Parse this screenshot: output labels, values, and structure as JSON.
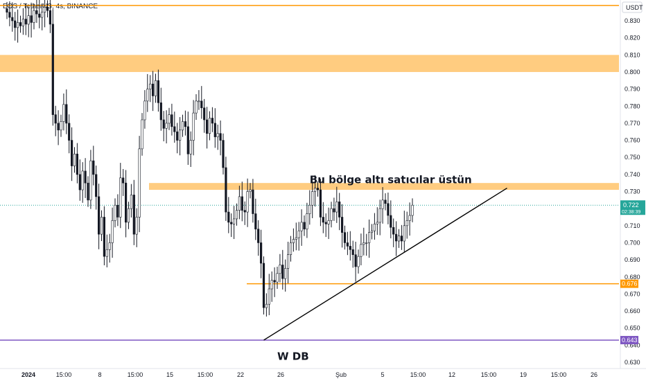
{
  "header": {
    "symbol_title": "EOS / TetherUS, 4s, BINANCE"
  },
  "price_scale": {
    "currency": "USDT"
  },
  "chart_data": {
    "type": "candlestick",
    "title": "EOS / TetherUS, 4s, BINANCE",
    "ylim": [
      0.625,
      0.84
    ],
    "y_ticks": [
      0.63,
      0.64,
      0.65,
      0.66,
      0.67,
      0.68,
      0.69,
      0.7,
      0.71,
      0.72,
      0.73,
      0.74,
      0.75,
      0.76,
      0.77,
      0.78,
      0.79,
      0.8,
      0.81,
      0.82,
      0.83
    ],
    "y_tick_labels": [
      "0.630",
      "0.640",
      "0.650",
      "0.660",
      "0.670",
      "0.680",
      "0.690",
      "0.700",
      "0.710",
      "0.720",
      "0.730",
      "0.740",
      "0.750",
      "0.760",
      "0.770",
      "0.780",
      "0.790",
      "0.800",
      "0.810",
      "0.820",
      "0.830"
    ],
    "x_tick_labels": [
      "2024",
      "15:00",
      "8",
      "15:00",
      "15",
      "15:00",
      "22",
      "26",
      "Şub",
      "5",
      "15:00",
      "12",
      "15:00",
      "19",
      "15:00",
      "26"
    ],
    "current_price": {
      "label": "0.722",
      "countdown": "02:38:39",
      "value": 0.722,
      "color": "#26a69a"
    },
    "price_tags": [
      {
        "label": "0.676",
        "value": 0.676,
        "color": "#ff9800"
      },
      {
        "label": "0.643",
        "value": 0.643,
        "color": "#7e57c2"
      }
    ],
    "levels": [
      {
        "value": 0.839,
        "color": "#ff9800"
      },
      {
        "value": 0.676,
        "color": "#ff9800"
      },
      {
        "value": 0.643,
        "color": "#7e57c2"
      }
    ],
    "zones": [
      {
        "from": 0.8,
        "to": 0.81,
        "color": "#ffcc80"
      },
      {
        "from": 0.731,
        "to": 0.735,
        "color": "#ffcc80"
      }
    ],
    "trendline": {
      "from": {
        "bar": 95,
        "price": 0.643
      },
      "to": {
        "bar": 185,
        "price": 0.732
      }
    },
    "annotations": [
      {
        "text": "Bu bölge altı satıcılar üstün",
        "at": {
          "bar": 112,
          "price": 0.734
        }
      },
      {
        "text": "W DB",
        "at": {
          "bar": 100,
          "price": 0.638
        }
      }
    ],
    "closes": [
      0.835,
      0.832,
      0.83,
      0.826,
      0.829,
      0.827,
      0.831,
      0.828,
      0.833,
      0.829,
      0.836,
      0.834,
      0.832,
      0.835,
      0.838,
      0.836,
      0.828,
      0.775,
      0.77,
      0.766,
      0.771,
      0.781,
      0.77,
      0.76,
      0.745,
      0.752,
      0.74,
      0.731,
      0.742,
      0.735,
      0.725,
      0.748,
      0.74,
      0.727,
      0.705,
      0.715,
      0.692,
      0.696,
      0.7,
      0.713,
      0.722,
      0.715,
      0.738,
      0.735,
      0.712,
      0.72,
      0.728,
      0.705,
      0.715,
      0.755,
      0.772,
      0.783,
      0.79,
      0.793,
      0.786,
      0.795,
      0.782,
      0.772,
      0.767,
      0.77,
      0.775,
      0.768,
      0.765,
      0.76,
      0.766,
      0.771,
      0.768,
      0.752,
      0.76,
      0.776,
      0.783,
      0.783,
      0.779,
      0.772,
      0.764,
      0.773,
      0.77,
      0.762,
      0.764,
      0.76,
      0.744,
      0.718,
      0.712,
      0.711,
      0.714,
      0.719,
      0.727,
      0.719,
      0.718,
      0.73,
      0.731,
      0.717,
      0.708,
      0.7,
      0.688,
      0.662,
      0.664,
      0.673,
      0.678,
      0.677,
      0.682,
      0.687,
      0.679,
      0.685,
      0.693,
      0.7,
      0.702,
      0.703,
      0.707,
      0.712,
      0.708,
      0.717,
      0.722,
      0.73,
      0.732,
      0.731,
      0.715,
      0.712,
      0.711,
      0.713,
      0.72,
      0.718,
      0.724,
      0.715,
      0.706,
      0.7,
      0.698,
      0.696,
      0.693,
      0.686,
      0.692,
      0.699,
      0.7,
      0.7,
      0.706,
      0.707,
      0.711,
      0.712,
      0.72,
      0.725,
      0.723,
      0.716,
      0.709,
      0.705,
      0.701,
      0.704,
      0.701,
      0.71,
      0.713,
      0.716,
      0.722
    ]
  }
}
